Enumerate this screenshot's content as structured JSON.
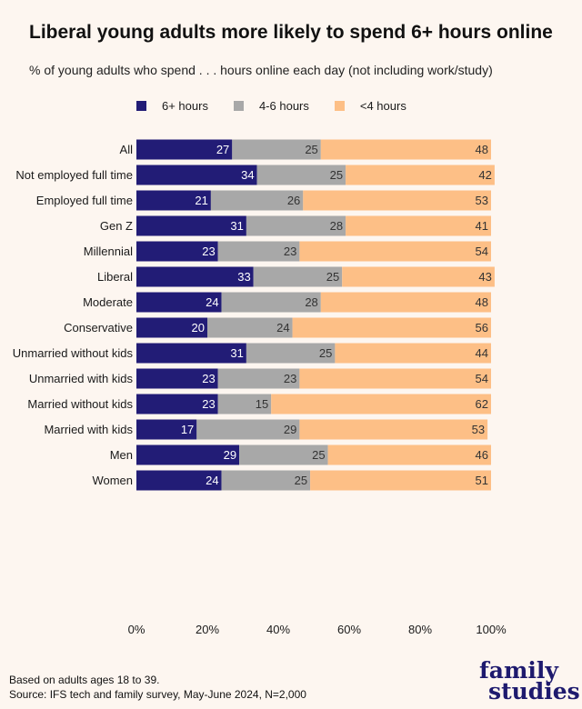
{
  "title": "Liberal young adults more likely to spend 6+ hours online",
  "subtitle": "% of young adults who spend . . . hours online each day (not including work/study)",
  "footnote": {
    "line1": "Based on adults ages 18 to 39.",
    "line2": "Source: IFS tech and family survey, May-June 2024, N=2,000"
  },
  "brand": {
    "line1": "family",
    "line2": "studies"
  },
  "colors": {
    "six_plus": "#221c76",
    "four_six": "#a8a8a8",
    "under_four": "#fdbf86",
    "background": "#fdf6f0"
  },
  "chart_data": {
    "type": "bar",
    "orientation": "horizontal",
    "stacked": true,
    "categories": [
      "All",
      "Not employed full time",
      "Employed full time",
      "Gen Z",
      "Millennial",
      "Liberal",
      "Moderate",
      "Conservative",
      "Unmarried without kids",
      "Unmarried with kids",
      "Married without kids",
      "Married with kids",
      "Men",
      "Women"
    ],
    "groups": [
      [
        0
      ],
      [
        1,
        2
      ],
      [
        3,
        4
      ],
      [
        5,
        6,
        7
      ],
      [
        8,
        9,
        10,
        11
      ],
      [
        12,
        13
      ]
    ],
    "series": [
      {
        "name": "6+ hours",
        "values": [
          27,
          34,
          21,
          31,
          23,
          33,
          24,
          20,
          31,
          23,
          23,
          17,
          29,
          24
        ]
      },
      {
        "name": "4-6 hours",
        "values": [
          25,
          25,
          26,
          28,
          23,
          25,
          28,
          24,
          25,
          23,
          15,
          29,
          25,
          25
        ]
      },
      {
        "name": "<4 hours",
        "values": [
          48,
          42,
          53,
          41,
          54,
          43,
          48,
          56,
          44,
          54,
          62,
          53,
          46,
          51
        ]
      }
    ],
    "xlim": [
      0,
      100
    ],
    "xticks": [
      "0%",
      "20%",
      "40%",
      "60%",
      "80%",
      "100%"
    ],
    "legend_position": "top",
    "grid": false
  }
}
